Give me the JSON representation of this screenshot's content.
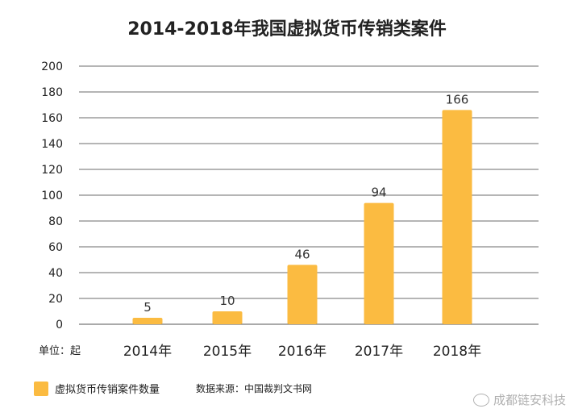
{
  "chart_data": {
    "type": "bar",
    "title": "2014-2018年我国虚拟货币传销类案件",
    "categories": [
      "2014年",
      "2015年",
      "2016年",
      "2017年",
      "2018年"
    ],
    "series": [
      {
        "name": "虚拟货币传销案件数量",
        "values": [
          5,
          10,
          46,
          94,
          166
        ]
      }
    ],
    "ylim": [
      0,
      200
    ],
    "yticks": [
      0,
      20,
      40,
      60,
      80,
      100,
      120,
      140,
      160,
      180,
      200
    ],
    "unit_label": "单位：起",
    "grid": true,
    "legend_position": "bottom-left",
    "bar_color": "#fbbb41",
    "source": "数据来源：中国裁判文书网"
  },
  "watermark": "成都链安科技"
}
